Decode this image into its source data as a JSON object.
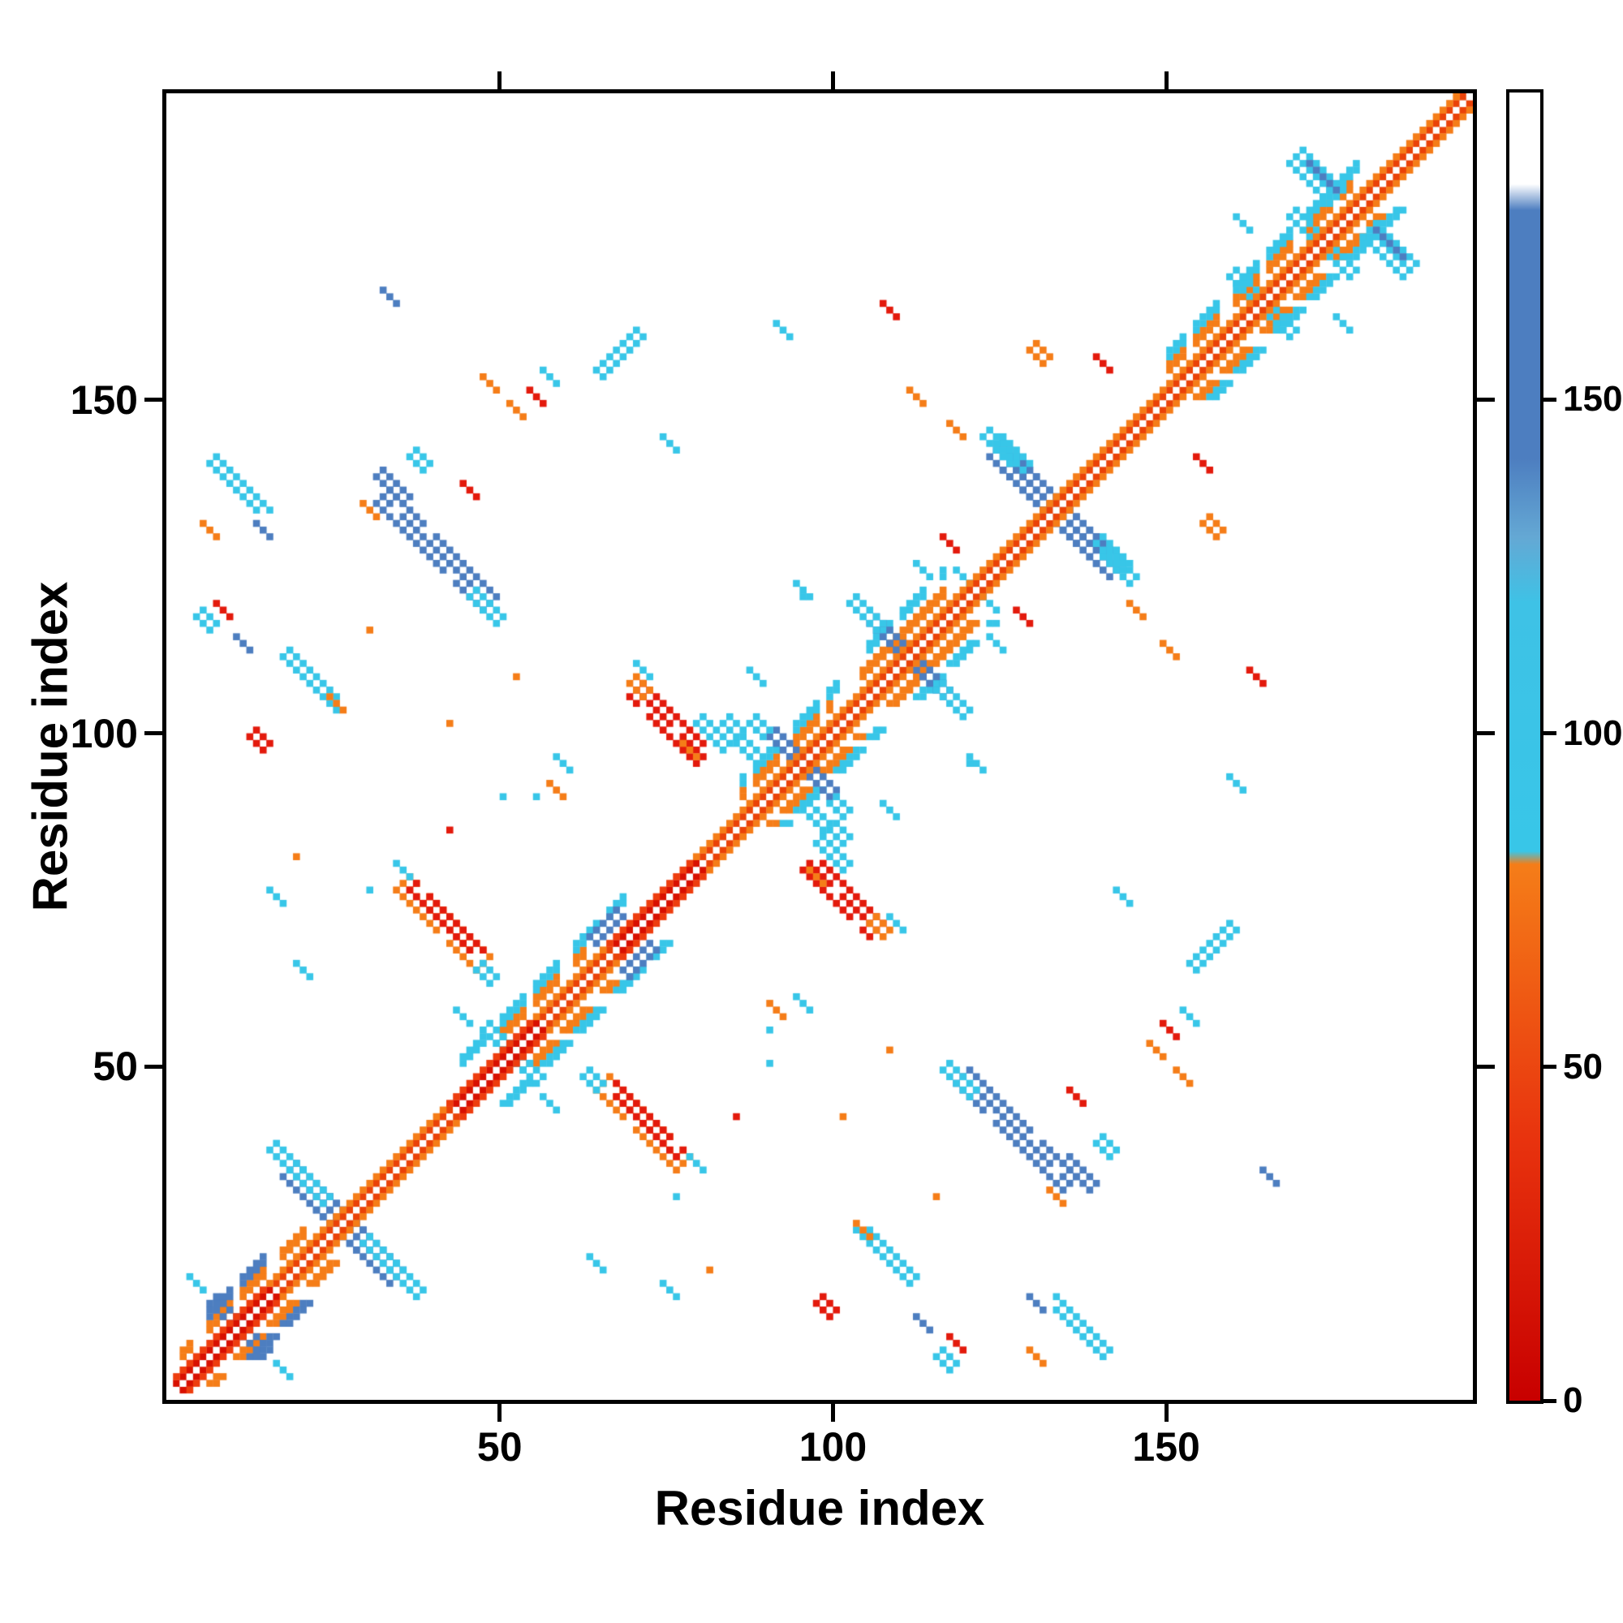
{
  "chart_data": {
    "type": "heatmap",
    "title": "",
    "xlabel": "Residue index",
    "ylabel": "Residue index",
    "n": 196,
    "axis_range": [
      0,
      196
    ],
    "x_ticks": [
      50,
      100,
      150
    ],
    "y_ticks": [
      50,
      100,
      150
    ],
    "grid": false,
    "legend_position": "right-colorbar",
    "palette": {
      "red": "#e31a0c",
      "orange": "#f57d18",
      "cyan": "#38c6e8",
      "steel": "#4d7ec0",
      "d1": "#ea4208",
      "d2": "#f57d18",
      "dred1": "#d81000",
      "dred2": "#ee3d0e",
      "white": "#ffffff"
    },
    "colorbar": {
      "ticks": [
        0,
        50,
        100,
        150
      ],
      "range": [
        0,
        196
      ],
      "stops": [
        {
          "pos": 0,
          "color": "#c80000"
        },
        {
          "pos": 20,
          "color": "#e8330e"
        },
        {
          "pos": 41,
          "color": "#f57d18"
        },
        {
          "pos": 42,
          "color": "#38c6e8"
        },
        {
          "pos": 61,
          "color": "#3ec2e6"
        },
        {
          "pos": 66,
          "color": "#64a8d4"
        },
        {
          "pos": 72,
          "color": "#4d7ec0"
        },
        {
          "pos": 91,
          "color": "#4d7ec0"
        },
        {
          "pos": 93,
          "color": "#ffffff"
        },
        {
          "pos": 100,
          "color": "#ffffff"
        }
      ]
    },
    "diagonal": {
      "red_segments": [
        [
          1,
          16
        ],
        [
          44,
          56
        ],
        [
          68,
          80
        ]
      ],
      "flanks": [
        {
          "from": 2,
          "to": 20,
          "offsets": [
            4,
            5
          ],
          "c": "orange",
          "dash": true
        },
        {
          "from": 48,
          "to": 62,
          "offsets": [
            4,
            5
          ],
          "c": "orange",
          "dash": true
        },
        {
          "from": 86,
          "to": 99,
          "offsets": [
            4,
            5
          ],
          "c": "orange",
          "dash": true
        },
        {
          "from": 104,
          "to": 116,
          "offsets": [
            4,
            5
          ],
          "c": "orange",
          "dash": false
        },
        {
          "from": 150,
          "to": 177,
          "offsets": [
            4,
            5
          ],
          "c": "orange",
          "dash": true
        },
        {
          "from": 44,
          "to": 68,
          "offsets": [
            6,
            7
          ],
          "c": "cyan",
          "dash": true
        },
        {
          "from": 86,
          "to": 100,
          "offsets": [
            6,
            7
          ],
          "c": "cyan",
          "dash": true
        },
        {
          "from": 150,
          "to": 178,
          "offsets": [
            6,
            7
          ],
          "c": "cyan",
          "dash": true
        },
        {
          "from": 5,
          "to": 15,
          "offsets": [
            6,
            7
          ],
          "c": "steel",
          "dash": true
        },
        {
          "from": 104,
          "to": 116,
          "offsets": [
            7,
            8
          ],
          "c": "cyan",
          "dash": true
        }
      ]
    },
    "blobs": [
      {
        "x": 8,
        "y": 12,
        "d": -1,
        "len": 5,
        "t": 2,
        "c": "steel"
      },
      {
        "x": 4,
        "y": 17,
        "d": -1,
        "len": 2,
        "t": 1,
        "c": "cyan"
      },
      {
        "x": 24,
        "y": 28,
        "d": -1,
        "len": 13,
        "t": 3,
        "c": "steel"
      },
      {
        "x": 17,
        "y": 35,
        "d": -1,
        "len": 4,
        "t": 2,
        "c": "cyan"
      },
      {
        "x": 31,
        "y": 21,
        "d": -1,
        "len": 4,
        "t": 2,
        "c": "cyan"
      },
      {
        "x": 10,
        "y": 136,
        "d": -1,
        "len": 9,
        "t": 2,
        "c": "cyan"
      },
      {
        "x": 6,
        "y": 130,
        "d": -1,
        "len": 2,
        "t": 1,
        "c": "orange"
      },
      {
        "x": 14,
        "y": 130,
        "d": -1,
        "len": 3,
        "t": 1,
        "c": "steel"
      },
      {
        "x": 5,
        "y": 116,
        "d": -1,
        "len": 3,
        "t": 2,
        "c": "cyan"
      },
      {
        "x": 11,
        "y": 113,
        "d": -1,
        "len": 2,
        "t": 1,
        "c": "steel"
      },
      {
        "x": 16,
        "y": 75,
        "d": -1,
        "len": 2,
        "t": 1,
        "c": "cyan"
      },
      {
        "x": 19,
        "y": 81,
        "d": -1,
        "len": 1,
        "t": 1,
        "c": "orange"
      },
      {
        "x": 107,
        "y": 21,
        "d": -1,
        "len": 9,
        "t": 2,
        "c": "cyan"
      },
      {
        "x": 25,
        "y": 104,
        "d": -1,
        "len": 2,
        "t": 1,
        "c": "orange"
      },
      {
        "x": 30,
        "y": 115,
        "d": -1,
        "len": 1,
        "t": 1,
        "c": "orange"
      },
      {
        "x": 40,
        "y": 127,
        "d": -1,
        "len": 17,
        "t": 3,
        "c": "steel"
      },
      {
        "x": 47,
        "y": 118,
        "d": -1,
        "len": 4,
        "t": 2,
        "c": "cyan"
      },
      {
        "x": 33,
        "y": 136,
        "d": -1,
        "len": 5,
        "t": 2,
        "c": "steel"
      },
      {
        "x": 37,
        "y": 140,
        "d": -1,
        "len": 3,
        "t": 2,
        "c": "cyan"
      },
      {
        "x": 30,
        "y": 133,
        "d": -1,
        "len": 2,
        "t": 1,
        "c": "orange"
      },
      {
        "x": 136,
        "y": 45,
        "d": -1,
        "len": 3,
        "t": 1,
        "c": "red"
      },
      {
        "x": 41,
        "y": 71,
        "d": -1,
        "len": 13,
        "t": 3,
        "c": "orange"
      },
      {
        "x": 41,
        "y": 71,
        "d": -1,
        "len": 11,
        "t": 2,
        "c": "red"
      },
      {
        "x": 47,
        "y": 63,
        "d": -1,
        "len": 3,
        "t": 2,
        "c": "cyan"
      },
      {
        "x": 35,
        "y": 79,
        "d": -1,
        "len": 2,
        "t": 1,
        "c": "cyan"
      },
      {
        "x": 42,
        "y": 101,
        "d": -1,
        "len": 1,
        "t": 1,
        "c": "orange"
      },
      {
        "x": 50,
        "y": 90,
        "d": -1,
        "len": 1,
        "t": 1,
        "c": "cyan"
      },
      {
        "x": 52,
        "y": 148,
        "d": -1,
        "len": 2,
        "t": 1,
        "c": "orange"
      },
      {
        "x": 55,
        "y": 150,
        "d": -1,
        "len": 2,
        "t": 1,
        "c": "red"
      },
      {
        "x": 67,
        "y": 157,
        "d": 1,
        "len": 6,
        "t": 2,
        "c": "cyan"
      },
      {
        "x": 57,
        "y": 44,
        "d": -1,
        "len": 2,
        "t": 1,
        "c": "cyan"
      },
      {
        "x": 59,
        "y": 95,
        "d": -1,
        "len": 3,
        "t": 1,
        "c": "cyan"
      },
      {
        "x": 55,
        "y": 90,
        "d": -1,
        "len": 1,
        "t": 1,
        "c": "cyan"
      },
      {
        "x": 64,
        "y": 20,
        "d": -1,
        "len": 2,
        "t": 1,
        "c": "cyan"
      },
      {
        "x": 65,
        "y": 71,
        "d": 1,
        "len": 5,
        "t": 2,
        "c": "steel"
      },
      {
        "x": 76,
        "y": 30,
        "d": -1,
        "len": 1,
        "t": 1,
        "c": "cyan"
      },
      {
        "x": 75,
        "y": 101,
        "d": -1,
        "len": 11,
        "t": 3,
        "c": "red"
      },
      {
        "x": 70,
        "y": 106,
        "d": -1,
        "len": 3,
        "t": 2,
        "c": "orange"
      },
      {
        "x": 81,
        "y": 99,
        "d": -1,
        "len": 4,
        "t": 2,
        "c": "cyan"
      },
      {
        "x": 86,
        "y": 97,
        "d": -1,
        "len": 3,
        "t": 2,
        "c": "cyan"
      },
      {
        "x": 71,
        "y": 109,
        "d": -1,
        "len": 2,
        "t": 1,
        "c": "cyan"
      },
      {
        "x": 85,
        "y": 42,
        "d": -1,
        "len": 1,
        "t": 1,
        "c": "red"
      },
      {
        "x": 91,
        "y": 58,
        "d": -1,
        "len": 2,
        "t": 1,
        "c": "orange"
      },
      {
        "x": 93,
        "y": 96,
        "d": -1,
        "len": 7,
        "t": 2,
        "c": "steel"
      },
      {
        "x": 88,
        "y": 100,
        "d": -1,
        "len": 3,
        "t": 2,
        "c": "cyan"
      },
      {
        "x": 88,
        "y": 108,
        "d": -1,
        "len": 2,
        "t": 1,
        "c": "cyan"
      },
      {
        "x": 97,
        "y": 78,
        "d": -1,
        "len": 2,
        "t": 1,
        "c": "orange"
      },
      {
        "x": 100,
        "y": 84,
        "d": -1,
        "len": 3,
        "t": 2,
        "c": "cyan"
      },
      {
        "x": 98,
        "y": 13,
        "d": -1,
        "len": 3,
        "t": 2,
        "c": "red"
      },
      {
        "x": 108,
        "y": 52,
        "d": -1,
        "len": 1,
        "t": 1,
        "c": "orange"
      },
      {
        "x": 109,
        "y": 112,
        "d": -1,
        "len": 9,
        "t": 2,
        "c": "steel"
      },
      {
        "x": 104,
        "y": 117,
        "d": -1,
        "len": 4,
        "t": 2,
        "c": "cyan"
      },
      {
        "x": 113,
        "y": 124,
        "d": -1,
        "len": 2,
        "t": 1,
        "c": "cyan"
      },
      {
        "x": 118,
        "y": 8,
        "d": -1,
        "len": 2,
        "t": 1,
        "c": "red"
      },
      {
        "x": 120,
        "y": 122,
        "d": -1,
        "len": 4,
        "t": 1,
        "c": "cyan"
      },
      {
        "x": 121,
        "y": 95,
        "d": -1,
        "len": 2,
        "t": 1,
        "c": "cyan"
      },
      {
        "x": 128,
        "y": 117,
        "d": -1,
        "len": 2,
        "t": 1,
        "c": "red"
      },
      {
        "x": 118,
        "y": 145,
        "d": -1,
        "len": 2,
        "t": 1,
        "c": "orange"
      },
      {
        "x": 130,
        "y": 156,
        "d": -1,
        "len": 3,
        "t": 2,
        "c": "orange"
      },
      {
        "x": 132,
        "y": 134,
        "d": -1,
        "len": 17,
        "t": 3,
        "c": "steel"
      },
      {
        "x": 124,
        "y": 142,
        "d": -1,
        "len": 4,
        "t": 2,
        "c": "cyan"
      },
      {
        "x": 141,
        "y": 126,
        "d": -1,
        "len": 4,
        "t": 2,
        "c": "cyan"
      },
      {
        "x": 143,
        "y": 75,
        "d": -1,
        "len": 2,
        "t": 1,
        "c": "cyan"
      },
      {
        "x": 150,
        "y": 112,
        "d": -1,
        "len": 2,
        "t": 1,
        "c": "orange"
      },
      {
        "x": 152,
        "y": 48,
        "d": -1,
        "len": 2,
        "t": 1,
        "c": "orange"
      },
      {
        "x": 153,
        "y": 57,
        "d": -1,
        "len": 2,
        "t": 1,
        "c": "cyan"
      },
      {
        "x": 155,
        "y": 140,
        "d": -1,
        "len": 2,
        "t": 1,
        "c": "red"
      },
      {
        "x": 160,
        "y": 92,
        "d": -1,
        "len": 2,
        "t": 1,
        "c": "cyan"
      },
      {
        "x": 163,
        "y": 108,
        "d": -1,
        "len": 2,
        "t": 1,
        "c": "red"
      },
      {
        "x": 165,
        "y": 33,
        "d": -1,
        "len": 2,
        "t": 1,
        "c": "steel"
      },
      {
        "x": 161,
        "y": 166,
        "d": -1,
        "len": 5,
        "t": 2,
        "c": "cyan"
      },
      {
        "x": 170,
        "y": 175,
        "d": -1,
        "len": 5,
        "t": 2,
        "c": "cyan"
      },
      {
        "x": 172,
        "y": 183,
        "d": -1,
        "len": 7,
        "t": 3,
        "c": "cyan"
      },
      {
        "x": 173,
        "y": 183,
        "d": -1,
        "len": 4,
        "t": 1,
        "c": "steel"
      },
      {
        "x": 176,
        "y": 161,
        "d": -1,
        "len": 2,
        "t": 1,
        "c": "cyan"
      },
      {
        "x": 50,
        "y": 52,
        "d": -1,
        "len": 6,
        "t": 2,
        "c": "cyan"
      },
      {
        "x": 120,
        "y": 95,
        "d": -1,
        "len": 1,
        "t": 1,
        "c": "cyan"
      }
    ]
  }
}
